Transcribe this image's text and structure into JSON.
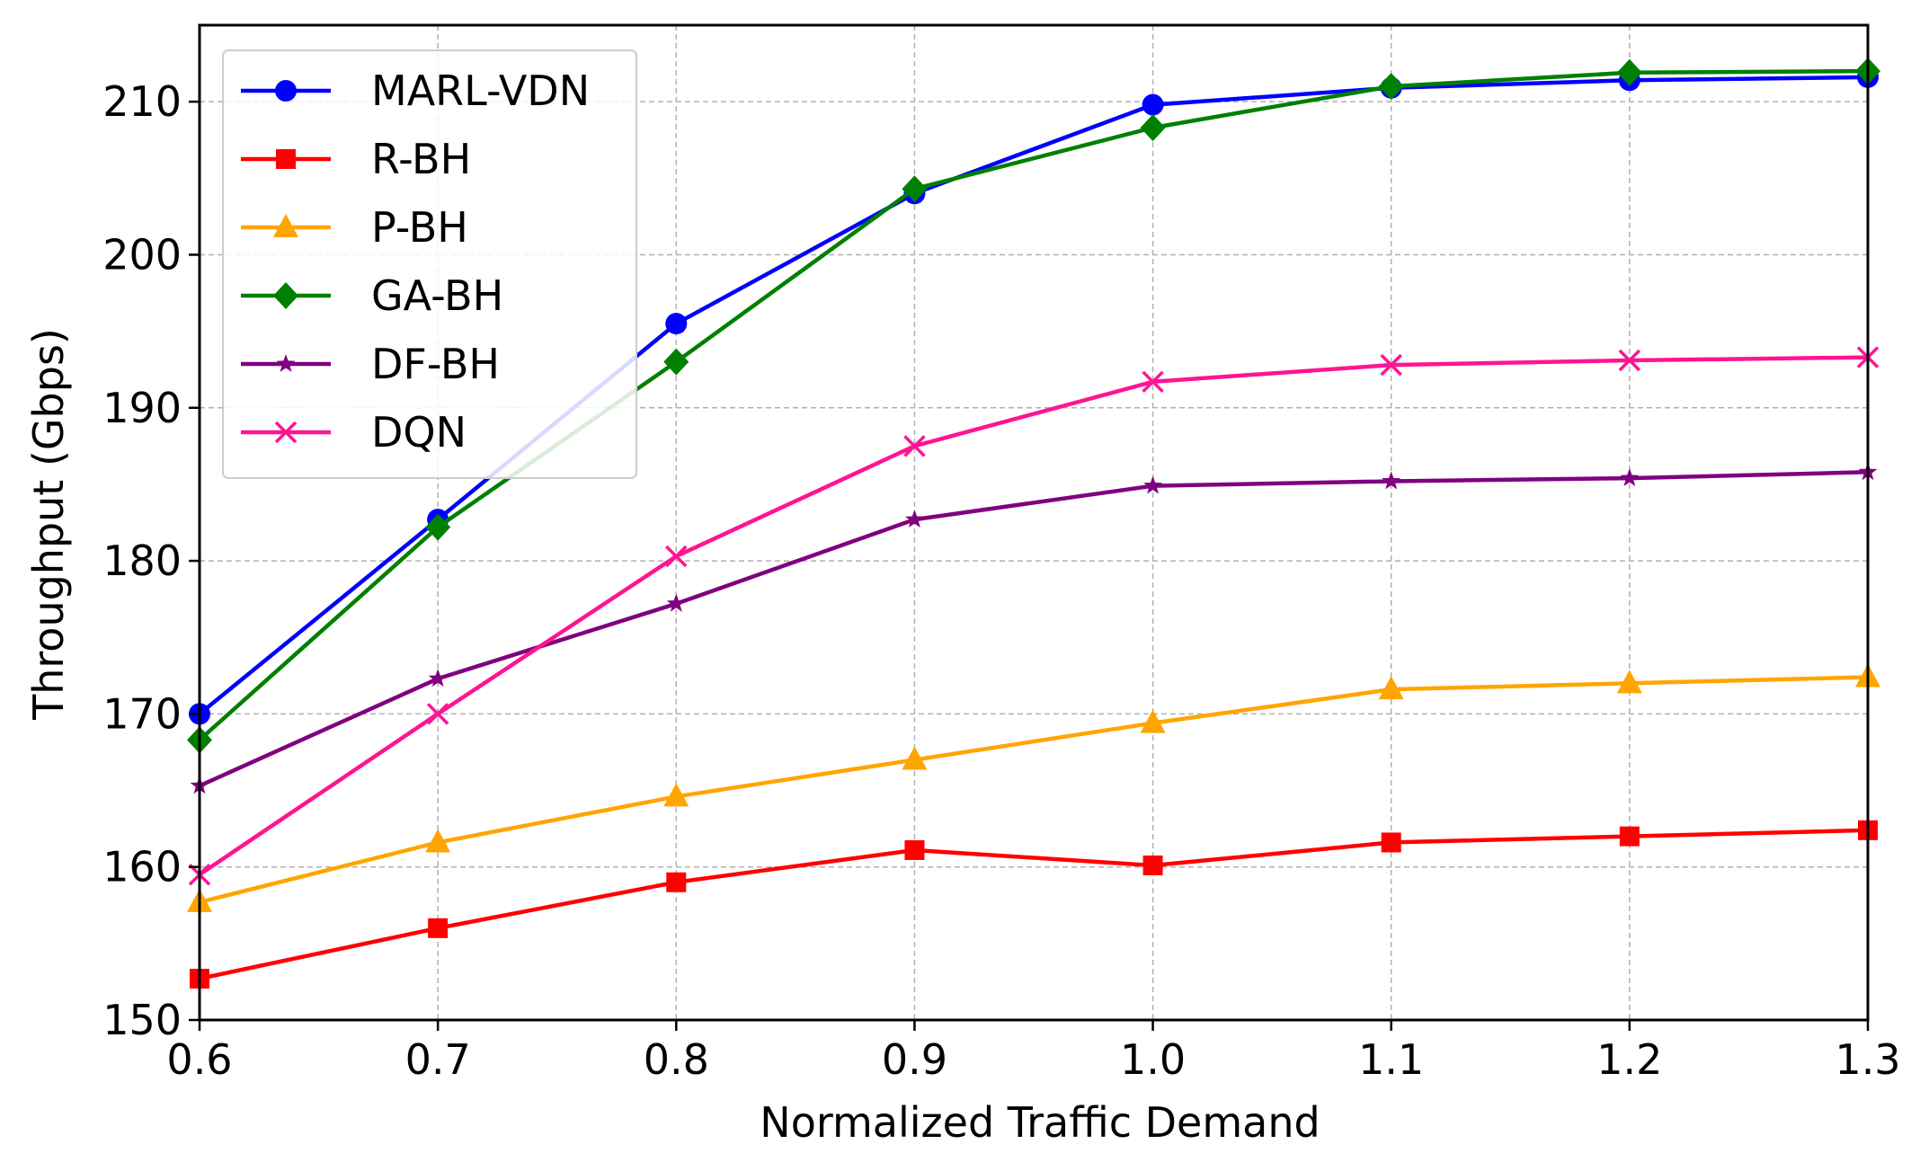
{
  "chart_data": {
    "type": "line",
    "title": "",
    "xlabel": "Normalized Traffic Demand",
    "ylabel": "Throughput (Gbps)",
    "xlim": [
      0.6,
      1.3
    ],
    "ylim": [
      150,
      215
    ],
    "grid": true,
    "legend_position": "top-left",
    "x": [
      0.6,
      0.7,
      0.8,
      0.9,
      1.0,
      1.1,
      1.2,
      1.3
    ],
    "x_tick_labels": [
      "0.6",
      "0.7",
      "0.8",
      "0.9",
      "1.0",
      "1.1",
      "1.2",
      "1.3"
    ],
    "y_ticks": [
      150,
      160,
      170,
      180,
      190,
      200,
      210
    ],
    "y_tick_labels": [
      "150",
      "160",
      "170",
      "180",
      "190",
      "200",
      "210"
    ],
    "series": [
      {
        "name": "MARL-VDN",
        "color": "#0000ff",
        "marker": "circle",
        "values": [
          170.0,
          182.7,
          195.5,
          204.0,
          209.8,
          210.9,
          211.4,
          211.6
        ]
      },
      {
        "name": "R-BH",
        "color": "#ff0000",
        "marker": "square",
        "values": [
          152.7,
          156.0,
          159.0,
          161.1,
          160.1,
          161.6,
          162.0,
          162.4
        ]
      },
      {
        "name": "P-BH",
        "color": "#ffa500",
        "marker": "triangle",
        "values": [
          157.7,
          161.6,
          164.6,
          167.0,
          169.4,
          171.6,
          172.0,
          172.4
        ]
      },
      {
        "name": "GA-BH",
        "color": "#008000",
        "marker": "diamond",
        "values": [
          168.3,
          182.2,
          193.0,
          204.3,
          208.3,
          211.0,
          211.9,
          212.0
        ]
      },
      {
        "name": "DF-BH",
        "color": "#800080",
        "marker": "star",
        "values": [
          165.3,
          172.3,
          177.2,
          182.7,
          184.9,
          185.2,
          185.4,
          185.8
        ]
      },
      {
        "name": "DQN",
        "color": "#ff1493",
        "marker": "x",
        "values": [
          159.5,
          170.0,
          180.3,
          187.5,
          191.7,
          192.8,
          193.1,
          193.3
        ]
      }
    ]
  }
}
